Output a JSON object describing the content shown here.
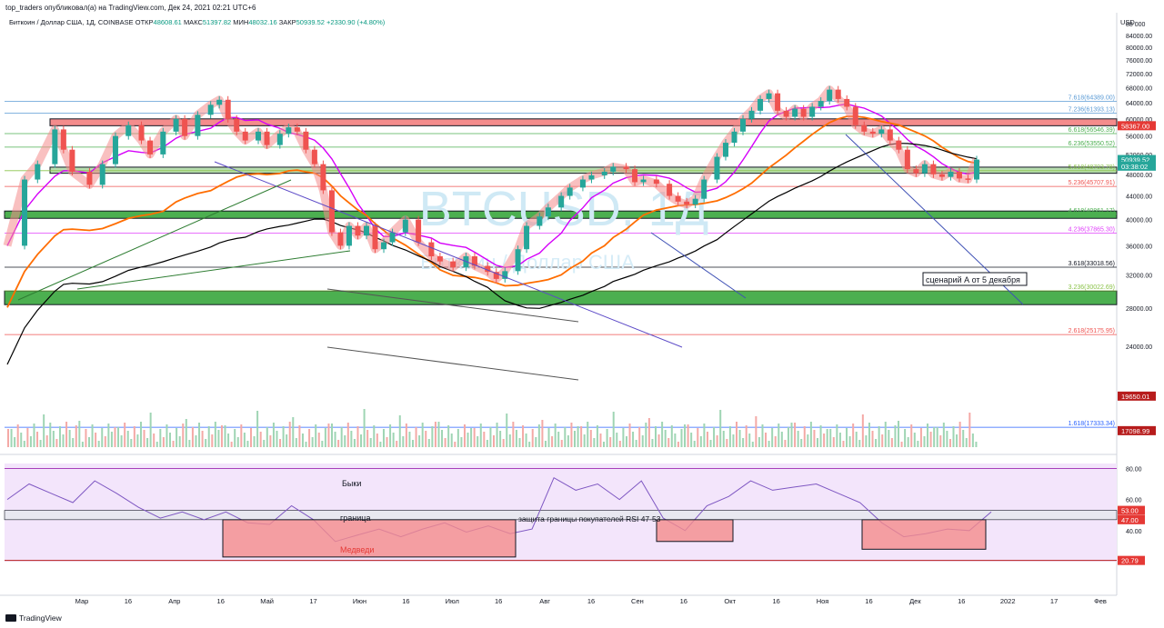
{
  "header": {
    "published": "top_traders опубликовал(а) на TradingView.com, Дек 24, 2021 02:21 UTC+6",
    "symbol": "Биткоин / Доллар США, 1Д, COINBASE",
    "open_label": "ОТКР",
    "open": "48608.61",
    "high_label": "МАКС",
    "high": "51397.82",
    "low_label": "МИН",
    "low": "48032.16",
    "close_label": "ЗАКР",
    "close": "50939.52",
    "change": "+2330.90 (+4.80%)"
  },
  "footer": {
    "brand": "TradingView"
  },
  "colors": {
    "up": "#26a69a",
    "down": "#ef5350",
    "ma_black": "#000000",
    "ma_orange": "#ff6d00",
    "ma_magenta": "#d500f9",
    "zone_green": "#4caf50",
    "zone_red": "#f48c8c",
    "rsi_bg": "#f3e5fb",
    "rsi_line": "#7e57c2"
  },
  "chart_data": [
    {
      "type": "line",
      "title": "",
      "watermark": "BTCUSD, 1Д",
      "watermark_sub": "Биткоин / Доллар США",
      "currency": "USD",
      "y_scale": "log",
      "y_ticks": [
        24000,
        28000,
        32000,
        36000,
        40000,
        44000,
        48000,
        52000,
        56000,
        60000,
        64000,
        68000,
        72000,
        76000,
        80000,
        84000,
        88000
      ],
      "y_tick_labels": [
        "24000.00",
        "28000.00",
        "32000.00",
        "36000.00",
        "40000.00",
        "44000.00",
        "48000.00",
        "52000.00",
        "56000.00",
        "60000.00",
        "64000.00",
        "68000.00",
        "72000.00",
        "76000.00",
        "80000.00",
        "84000.00",
        "88 000"
      ],
      "x_ticks": [
        "Мар",
        "16",
        "Апр",
        "16",
        "Май",
        "17",
        "Июн",
        "16",
        "Июл",
        "16",
        "Авг",
        "16",
        "Сен",
        "16",
        "Окт",
        "16",
        "Ноя",
        "16",
        "Дек",
        "16",
        "2022",
        "17",
        "Фев"
      ],
      "series": [
        {
          "values": [
            [
              0,
              36000
            ],
            [
              8,
              47000
            ],
            [
              14,
              50000
            ],
            [
              22,
              57500
            ],
            [
              26,
              53000
            ],
            [
              30,
              48500
            ],
            [
              38,
              46000
            ],
            [
              44,
              50000
            ],
            [
              50,
              56000
            ],
            [
              56,
              58500
            ],
            [
              62,
              55000
            ],
            [
              66,
              52000
            ],
            [
              72,
              57000
            ],
            [
              78,
              60000
            ],
            [
              82,
              56000
            ],
            [
              88,
              61000
            ],
            [
              94,
              63500
            ],
            [
              98,
              64800
            ],
            [
              102,
              60000
            ],
            [
              106,
              57000
            ],
            [
              110,
              55000
            ],
            [
              116,
              57000
            ],
            [
              120,
              54000
            ],
            [
              126,
              56500
            ],
            [
              130,
              58000
            ],
            [
              134,
              57000
            ],
            [
              138,
              53000
            ],
            [
              142,
              50000
            ],
            [
              146,
              45000
            ],
            [
              150,
              38000
            ],
            [
              154,
              36000
            ],
            [
              158,
              39000
            ],
            [
              162,
              37500
            ],
            [
              166,
              39000
            ],
            [
              170,
              35500
            ],
            [
              174,
              36500
            ],
            [
              178,
              38000
            ],
            [
              184,
              40000
            ],
            [
              190,
              36500
            ],
            [
              196,
              34500
            ],
            [
              200,
              33800
            ],
            [
              206,
              33000
            ],
            [
              212,
              34500
            ],
            [
              216,
              33200
            ],
            [
              222,
              32400
            ],
            [
              226,
              31500
            ],
            [
              230,
              32500
            ],
            [
              236,
              35500
            ],
            [
              240,
              39000
            ],
            [
              246,
              40500
            ],
            [
              250,
              42000
            ],
            [
              256,
              44000
            ],
            [
              260,
              45500
            ],
            [
              266,
              47000
            ],
            [
              270,
              47800
            ],
            [
              276,
              48500
            ],
            [
              280,
              49500
            ],
            [
              286,
              49000
            ],
            [
              290,
              46500
            ],
            [
              294,
              47000
            ],
            [
              300,
              46200
            ],
            [
              306,
              44000
            ],
            [
              310,
              43000
            ],
            [
              314,
              42500
            ],
            [
              318,
              43500
            ],
            [
              322,
              47000
            ],
            [
              328,
              51500
            ],
            [
              332,
              54500
            ],
            [
              336,
              57000
            ],
            [
              340,
              60000
            ],
            [
              344,
              62000
            ],
            [
              348,
              65000
            ],
            [
              352,
              66500
            ],
            [
              356,
              62000
            ],
            [
              360,
              60500
            ],
            [
              364,
              62500
            ],
            [
              368,
              60500
            ],
            [
              372,
              63000
            ],
            [
              376,
              64500
            ],
            [
              380,
              67500
            ],
            [
              384,
              65000
            ],
            [
              388,
              63000
            ],
            [
              392,
              58500
            ],
            [
              396,
              57000
            ],
            [
              400,
              56500
            ],
            [
              404,
              57500
            ],
            [
              408,
              55000
            ],
            [
              412,
              53000
            ],
            [
              416,
              49000
            ],
            [
              420,
              48200
            ],
            [
              424,
              50000
            ],
            [
              428,
              48000
            ],
            [
              432,
              47500
            ],
            [
              436,
              48500
            ],
            [
              440,
              47200
            ],
            [
              444,
              47000
            ],
            [
              448,
              50939
            ]
          ]
        }
      ],
      "levels": [
        {
          "label": "7.618(64389.00)",
          "value": 64389,
          "color": "#5b9bd5"
        },
        {
          "label": "7.236(61393.13)",
          "value": 61393,
          "color": "#5b9bd5"
        },
        {
          "label": "6.618(56546.39)",
          "value": 56546,
          "color": "#4caf50"
        },
        {
          "label": "6.236(53550.52)",
          "value": 53550,
          "color": "#4caf50"
        },
        {
          "label": "5.618(48703.78)",
          "value": 48703,
          "color": "#8bc34a"
        },
        {
          "label": "5.236(45707.91)",
          "value": 45707,
          "color": "#ef5350"
        },
        {
          "label": "4.618(40861.17)",
          "value": 40861,
          "color": "#4caf50"
        },
        {
          "label": "4.236(37865.30)",
          "value": 37865,
          "color": "#e040fb"
        },
        {
          "label": "3.618(33018.56)",
          "value": 33018,
          "color": "#131722"
        },
        {
          "label": "3.236(30022.69)",
          "value": 30022,
          "color": "#8bc34a"
        },
        {
          "label": "2.618(25175.95)",
          "value": 25175,
          "color": "#ef5350"
        },
        {
          "label": "1.618(17333.34)",
          "value": 17333,
          "color": "#2962ff"
        }
      ],
      "price_badges": [
        {
          "label": "58367.00",
          "value": 58367,
          "color": "#e53935"
        },
        {
          "label": "50939.52",
          "value": 50939,
          "color": "#26a69a"
        },
        {
          "label": "03:38:02",
          "value": 49600,
          "color": "#26a69a"
        },
        {
          "label": "19650.01",
          "value": 19650,
          "color": "#b71c1c"
        },
        {
          "label": "17098.99",
          "value": 17098,
          "color": "#b71c1c"
        }
      ],
      "zones": [
        {
          "from": 58367,
          "to": 60000,
          "color": "#f48c8c"
        },
        {
          "from": 48200,
          "to": 49400,
          "color": "#b8deb0"
        },
        {
          "from": 40200,
          "to": 41400,
          "color": "#4caf50"
        },
        {
          "from": 28400,
          "to": 30000,
          "color": "#4caf50"
        }
      ],
      "annotations": [
        "сценарий А от 5 декабря"
      ]
    },
    {
      "type": "line",
      "title": "",
      "y_ticks": [
        40,
        60,
        80
      ],
      "y_tick_labels": [
        "40.00",
        "60.00",
        "80.00"
      ],
      "badges": [
        {
          "label": "53.00",
          "value": 53,
          "color": "#e53935"
        },
        {
          "label": "47.00",
          "value": 47,
          "color": "#e53935"
        },
        {
          "label": "20.79",
          "value": 20.79,
          "color": "#e53935"
        }
      ],
      "annotations": [
        "Быки",
        "граница",
        "защита границы покупателей RSI 47-53",
        "Медведи"
      ],
      "series": [
        {
          "values": [
            [
              0,
              60
            ],
            [
              10,
              70
            ],
            [
              20,
              64
            ],
            [
              30,
              58
            ],
            [
              40,
              72
            ],
            [
              50,
              64
            ],
            [
              60,
              55
            ],
            [
              70,
              48
            ],
            [
              80,
              52
            ],
            [
              90,
              47
            ],
            [
              100,
              52
            ],
            [
              110,
              45
            ],
            [
              120,
              44
            ],
            [
              130,
              56
            ],
            [
              140,
              47
            ],
            [
              150,
              33
            ],
            [
              160,
              37
            ],
            [
              170,
              41
            ],
            [
              180,
              36
            ],
            [
              190,
              41
            ],
            [
              200,
              45
            ],
            [
              210,
              39
            ],
            [
              220,
              43
            ],
            [
              230,
              38
            ],
            [
              240,
              41
            ],
            [
              250,
              74
            ],
            [
              260,
              66
            ],
            [
              270,
              70
            ],
            [
              280,
              60
            ],
            [
              290,
              72
            ],
            [
              300,
              48
            ],
            [
              310,
              40
            ],
            [
              320,
              56
            ],
            [
              330,
              62
            ],
            [
              340,
              72
            ],
            [
              350,
              66
            ],
            [
              360,
              68
            ],
            [
              370,
              70
            ],
            [
              380,
              64
            ],
            [
              390,
              58
            ],
            [
              400,
              45
            ],
            [
              410,
              36
            ],
            [
              420,
              38
            ],
            [
              430,
              41
            ],
            [
              440,
              40
            ],
            [
              450,
              52
            ]
          ]
        }
      ]
    }
  ]
}
